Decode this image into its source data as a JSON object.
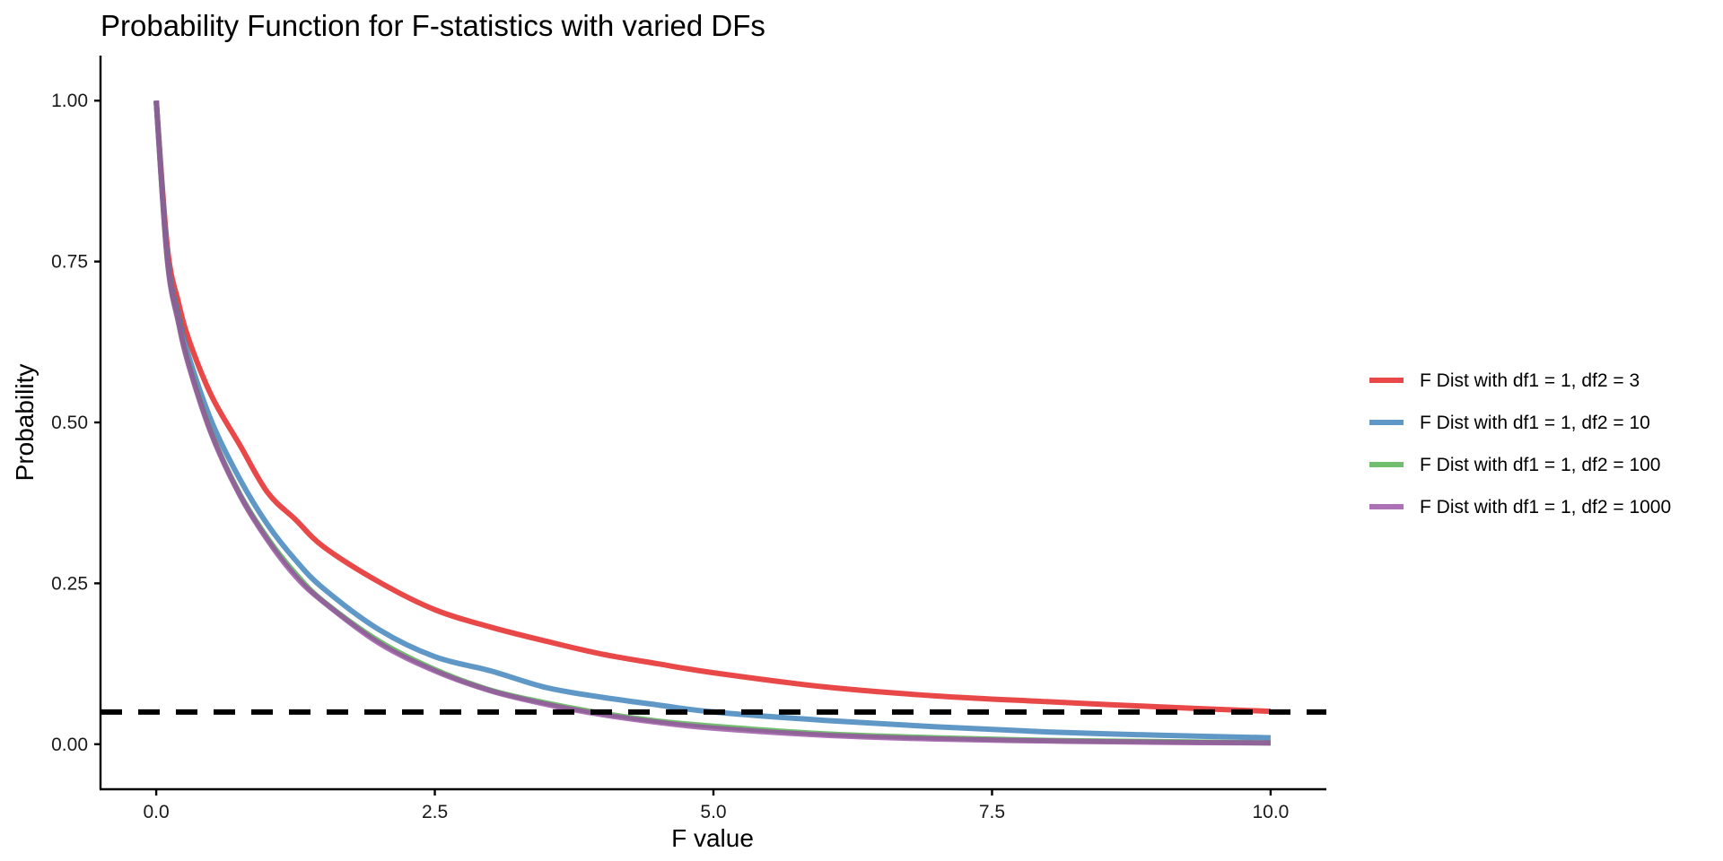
{
  "chart_data": {
    "type": "line",
    "title": "Probability Function for F-statistics with varied DFs",
    "xlabel": "F value",
    "ylabel": "Probability",
    "xlim": [
      -0.5,
      10.5
    ],
    "ylim": [
      -0.07,
      1.07
    ],
    "xticks": [
      0,
      2.5,
      5,
      7.5,
      10
    ],
    "xtick_labels": [
      "0.0",
      "2.5",
      "5.0",
      "7.5",
      "10.0"
    ],
    "yticks": [
      0,
      0.25,
      0.5,
      0.75,
      1
    ],
    "ytick_labels": [
      "0.00",
      "0.25",
      "0.50",
      "0.75",
      "1.00"
    ],
    "grid": false,
    "legend_position": "right",
    "reference_line": {
      "y": 0.05,
      "style": "dashed",
      "color": "#000000"
    },
    "x": [
      0,
      0.1,
      0.2,
      0.3,
      0.5,
      0.75,
      1,
      1.25,
      1.5,
      2,
      2.5,
      3,
      3.5,
      4,
      4.5,
      5,
      6,
      7,
      8,
      9,
      10
    ],
    "series": [
      {
        "name": "F Dist with df1 = 1, df2 = 3",
        "color": "#E41A1C",
        "values": [
          1.0,
          0.772,
          0.686,
          0.625,
          0.54,
          0.465,
          0.391,
          0.349,
          0.307,
          0.252,
          0.209,
          0.182,
          0.16,
          0.14,
          0.125,
          0.111,
          0.089,
          0.075,
          0.066,
          0.058,
          0.051
        ]
      },
      {
        "name": "F Dist with df1 = 1, df2 = 10",
        "color": "#377EB8",
        "values": [
          1.0,
          0.758,
          0.665,
          0.598,
          0.5,
          0.412,
          0.341,
          0.286,
          0.242,
          0.178,
          0.136,
          0.114,
          0.088,
          0.073,
          0.061,
          0.05,
          0.037,
          0.027,
          0.019,
          0.014,
          0.01
        ]
      },
      {
        "name": "F Dist with df1 = 1, df2 = 100",
        "color": "#4DAF4A",
        "values": [
          1.0,
          0.753,
          0.657,
          0.586,
          0.482,
          0.389,
          0.32,
          0.265,
          0.222,
          0.16,
          0.116,
          0.084,
          0.064,
          0.048,
          0.036,
          0.028,
          0.016,
          0.01,
          0.006,
          0.004,
          0.002
        ]
      },
      {
        "name": "F Dist with df1 = 1, df2 = 1000",
        "color": "#984EA3",
        "values": [
          1.0,
          0.752,
          0.655,
          0.584,
          0.48,
          0.387,
          0.317,
          0.261,
          0.221,
          0.157,
          0.114,
          0.083,
          0.062,
          0.046,
          0.034,
          0.025,
          0.014,
          0.008,
          0.005,
          0.003,
          0.002
        ]
      }
    ]
  }
}
